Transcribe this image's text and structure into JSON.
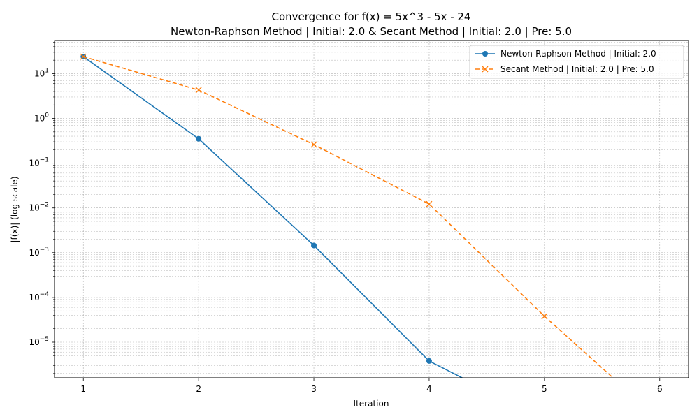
{
  "chart_data": {
    "type": "line",
    "title": "Convergence for f(x) = 5x^3 - 5x - 24",
    "subtitle": "Newton-Raphson Method | Initial: 2.0 & Secant Method | Initial: 2.0 | Pre: 5.0",
    "xlabel": "Iteration",
    "ylabel": "|f(x)| (log scale)",
    "x_ticks": [
      1,
      2,
      3,
      4,
      5,
      6
    ],
    "y_ticks": [
      {
        "value": 1e-05,
        "base": "10",
        "exp": "−5"
      },
      {
        "value": 0.0001,
        "base": "10",
        "exp": "−4"
      },
      {
        "value": 0.001,
        "base": "10",
        "exp": "−3"
      },
      {
        "value": 0.01,
        "base": "10",
        "exp": "−2"
      },
      {
        "value": 0.1,
        "base": "10",
        "exp": "−1"
      },
      {
        "value": 1,
        "base": "10",
        "exp": "0"
      },
      {
        "value": 10,
        "base": "10",
        "exp": "1"
      }
    ],
    "xlim": [
      0.75,
      6.25
    ],
    "ylim": [
      1.6e-06,
      55
    ],
    "yscale": "log",
    "grid": true,
    "legend_position": "top-right",
    "series": [
      {
        "name": "Newton-Raphson Method | Initial: 2.0",
        "color": "#1f77b4",
        "line_style": "solid",
        "marker": "circle",
        "x": [
          1,
          2,
          3,
          4,
          5
        ],
        "y": [
          24,
          0.35,
          0.00145,
          3.8e-06,
          0
        ]
      },
      {
        "name": "Secant Method | Initial: 2.0 | Pre: 5.0",
        "color": "#ff7f0e",
        "line_style": "dashed",
        "marker": "x",
        "x": [
          1,
          2,
          3,
          4,
          5,
          6
        ],
        "y": [
          24,
          4.3,
          0.26,
          0.0122,
          3.8e-05,
          0
        ]
      }
    ]
  }
}
